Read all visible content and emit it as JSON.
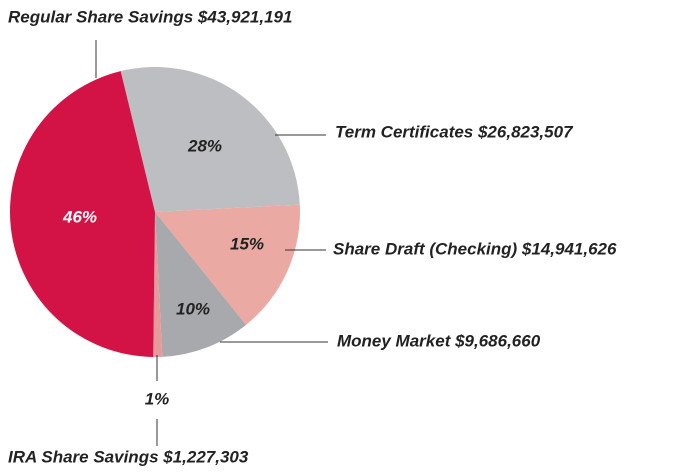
{
  "chart_data": {
    "type": "pie",
    "categories": [
      "Term Certificates $26,823,507",
      "Share Draft (Checking) $14,941,626",
      "Money Market $9,686,660",
      "IRA Share Savings $1,227,303",
      "Regular Share Savings $43,921,191"
    ],
    "values": [
      28,
      15,
      10,
      1,
      46
    ],
    "value_labels": [
      "28%",
      "15%",
      "10%",
      "1%",
      "46%"
    ],
    "colors": [
      "#bdbec1",
      "#eba9a4",
      "#a8a9ac",
      "#e8999c",
      "#d31245"
    ]
  }
}
